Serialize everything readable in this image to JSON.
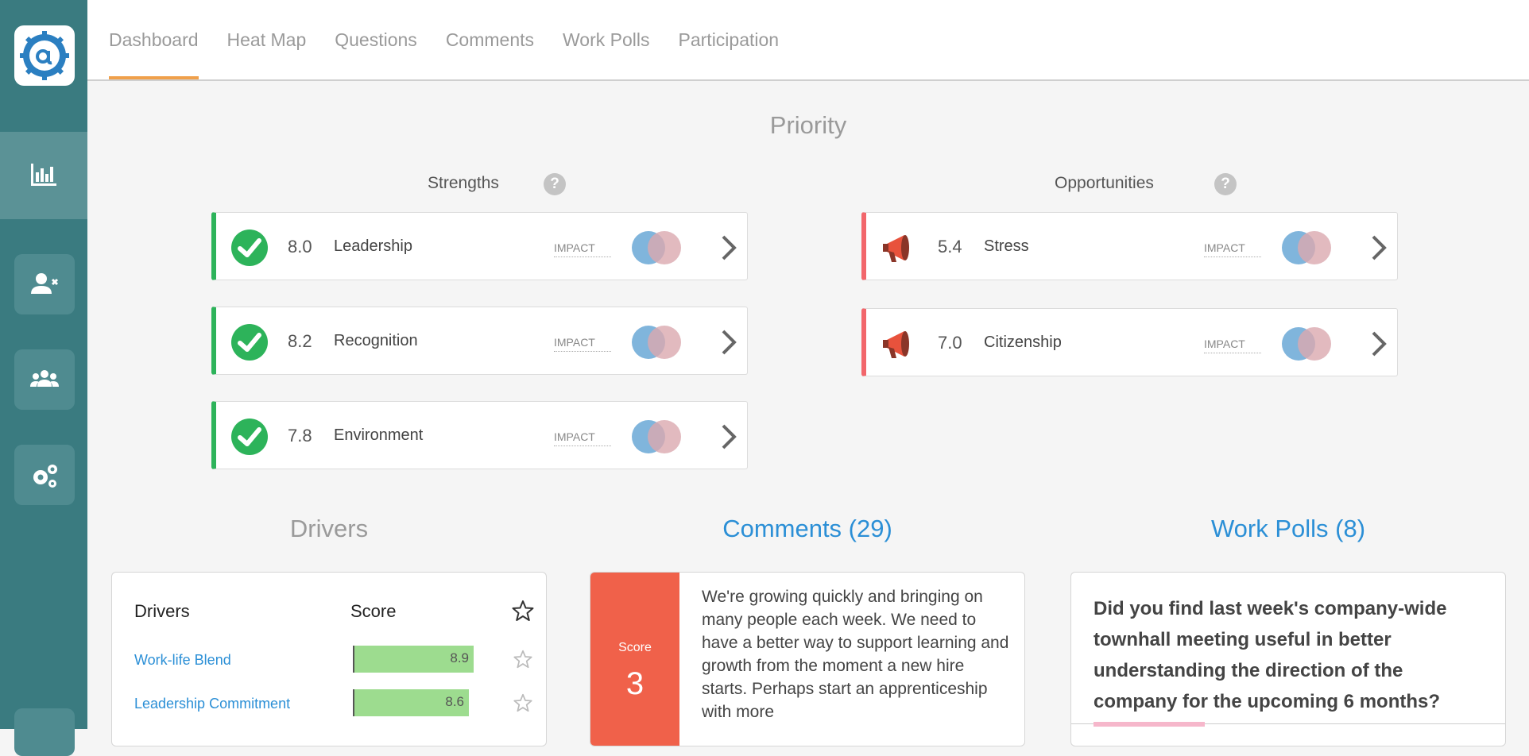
{
  "tabs": [
    "Dashboard",
    "Heat Map",
    "Questions",
    "Comments",
    "Work Polls",
    "Participation"
  ],
  "priority": {
    "title": "Priority",
    "strengths_heading": "Strengths",
    "opportunities_heading": "Opportunities",
    "help_glyph": "?",
    "impact_label": "IMPACT",
    "strengths": [
      {
        "score": "8.0",
        "label": "Leadership"
      },
      {
        "score": "8.2",
        "label": "Recognition"
      },
      {
        "score": "7.8",
        "label": "Environment"
      }
    ],
    "opportunities": [
      {
        "score": "5.4",
        "label": "Stress"
      },
      {
        "score": "7.0",
        "label": "Citizenship"
      }
    ]
  },
  "sections": {
    "drivers_title": "Drivers",
    "comments_title": "Comments (29)",
    "polls_title": "Work Polls (8)"
  },
  "drivers": {
    "col_drivers": "Drivers",
    "col_score": "Score",
    "rows": [
      {
        "label": "Work-life Blend",
        "score": "8.9"
      },
      {
        "label": "Leadership Commitment",
        "score": "8.6"
      }
    ]
  },
  "comment": {
    "score_label": "Score",
    "score_value": "3",
    "text": "We're growing quickly and bringing on many people each week. We need to have a better way to support learning and growth from the moment a new hire starts. Perhaps start an apprenticeship with more"
  },
  "poll": {
    "question": "Did you find last week's company-wide townhall meeting useful in better understanding the direction of the company for the upcoming 6 months?"
  },
  "colors": {
    "sidebar": "#3a7b80",
    "strength_accent": "#2db35a",
    "opportunity_accent": "#f2666b",
    "link_blue": "#2b8fd6",
    "tab_underline": "#f0a04b",
    "score_box": "#f0614a"
  }
}
